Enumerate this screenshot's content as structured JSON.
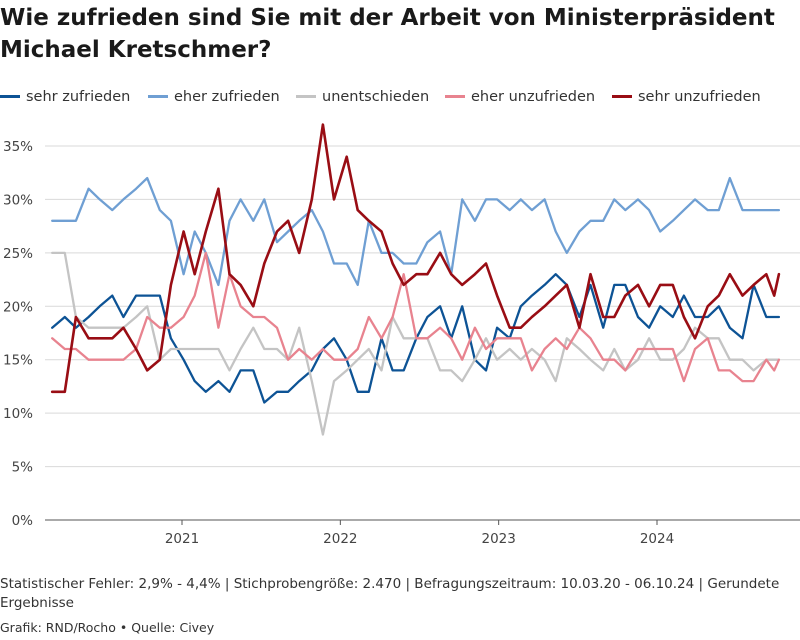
{
  "title": "Wie zufrieden sind Sie mit der Arbeit von Ministerpräsident Michael Kretschmer?",
  "footer": {
    "note": "Statistischer Fehler: 2,9% - 4,4% | Stichprobengröße: 2.470 | Befragungszeitraum: 10.03.20 - 06.10.24 | Gerundete Ergebnisse",
    "credit": "Grafik: RND/Rocho • Quelle: Civey"
  },
  "chart_data": {
    "type": "line",
    "title": "Wie zufrieden sind Sie mit der Arbeit von Ministerpräsident Michael Kretschmer?",
    "ylim": [
      0,
      37
    ],
    "y_ticks": [
      "0%",
      "5%",
      "10%",
      "15%",
      "20%",
      "25%",
      "30%",
      "35%"
    ],
    "y_tick_values": [
      0,
      5,
      10,
      15,
      20,
      25,
      30,
      35
    ],
    "x_range": [
      2020.18,
      2024.77
    ],
    "x_ticks": [
      "2021",
      "2022",
      "2023",
      "2024"
    ],
    "x_tick_values": [
      2021.0,
      2022.0,
      2023.0,
      2024.0
    ],
    "grid": "horizontal",
    "legend_placement": "top",
    "series": [
      {
        "name": "sehr zufrieden",
        "color": "#0d5395",
        "x": [
          2020.18,
          2020.26,
          2020.33,
          2020.41,
          2020.48,
          2020.56,
          2020.63,
          2020.71,
          2020.78,
          2020.86,
          2020.93,
          2021.01,
          2021.08,
          2021.15,
          2021.23,
          2021.3,
          2021.37,
          2021.45,
          2021.52,
          2021.6,
          2021.67,
          2021.74,
          2021.82,
          2021.89,
          2021.96,
          2022.04,
          2022.11,
          2022.18,
          2022.26,
          2022.33,
          2022.4,
          2022.48,
          2022.55,
          2022.63,
          2022.7,
          2022.77,
          2022.85,
          2022.92,
          2022.99,
          2023.07,
          2023.14,
          2023.21,
          2023.29,
          2023.36,
          2023.43,
          2023.51,
          2023.58,
          2023.66,
          2023.73,
          2023.8,
          2023.88,
          2023.95,
          2024.02,
          2024.1,
          2024.17,
          2024.24,
          2024.32,
          2024.39,
          2024.46,
          2024.54,
          2024.61,
          2024.69,
          2024.74,
          2024.77
        ],
        "values": [
          18,
          19,
          18,
          19,
          20,
          21,
          19,
          21,
          21,
          21,
          17,
          15,
          13,
          12,
          13,
          12,
          14,
          14,
          11,
          12,
          12,
          13,
          14,
          16,
          17,
          15,
          12,
          12,
          17,
          14,
          14,
          17,
          19,
          20,
          17,
          20,
          15,
          14,
          18,
          17,
          20,
          21,
          22,
          23,
          22,
          19,
          22,
          18,
          22,
          22,
          19,
          18,
          20,
          19,
          21,
          19,
          19,
          20,
          18,
          17,
          22,
          19,
          19,
          19
        ],
        "values_note": ""
      },
      {
        "name": "eher zufrieden",
        "color": "#6f9fd3",
        "x": [
          2020.18,
          2020.26,
          2020.33,
          2020.41,
          2020.48,
          2020.56,
          2020.63,
          2020.71,
          2020.78,
          2020.86,
          2020.93,
          2021.01,
          2021.08,
          2021.15,
          2021.23,
          2021.3,
          2021.37,
          2021.45,
          2021.52,
          2021.6,
          2021.67,
          2021.74,
          2021.82,
          2021.89,
          2021.96,
          2022.04,
          2022.11,
          2022.18,
          2022.26,
          2022.33,
          2022.4,
          2022.48,
          2022.55,
          2022.63,
          2022.7,
          2022.77,
          2022.85,
          2022.92,
          2022.99,
          2023.07,
          2023.14,
          2023.21,
          2023.29,
          2023.36,
          2023.43,
          2023.51,
          2023.58,
          2023.66,
          2023.73,
          2023.8,
          2023.88,
          2023.95,
          2024.02,
          2024.1,
          2024.17,
          2024.24,
          2024.32,
          2024.39,
          2024.46,
          2024.54,
          2024.61,
          2024.69,
          2024.77
        ],
        "values": [
          28,
          28,
          28,
          31,
          30,
          29,
          30,
          31,
          32,
          29,
          28,
          23,
          27,
          25,
          22,
          28,
          30,
          28,
          30,
          26,
          27,
          28,
          29,
          27,
          24,
          24,
          22,
          28,
          25,
          25,
          24,
          24,
          26,
          27,
          23,
          30,
          28,
          30,
          30,
          29,
          30,
          29,
          30,
          27,
          25,
          27,
          28,
          28,
          30,
          29,
          30,
          29,
          27,
          28,
          29,
          30,
          29,
          29,
          32,
          29,
          29,
          29,
          29
        ],
        "values_note": ""
      },
      {
        "name": "unentschieden",
        "color": "#c4c4c4",
        "x": [
          2020.18,
          2020.26,
          2020.33,
          2020.41,
          2020.48,
          2020.56,
          2020.63,
          2020.71,
          2020.78,
          2020.86,
          2020.93,
          2021.01,
          2021.08,
          2021.15,
          2021.23,
          2021.3,
          2021.37,
          2021.45,
          2021.52,
          2021.6,
          2021.67,
          2021.74,
          2021.82,
          2021.89,
          2021.96,
          2022.04,
          2022.11,
          2022.18,
          2022.26,
          2022.33,
          2022.4,
          2022.48,
          2022.55,
          2022.63,
          2022.7,
          2022.77,
          2022.85,
          2022.92,
          2022.99,
          2023.07,
          2023.14,
          2023.21,
          2023.29,
          2023.36,
          2023.43,
          2023.51,
          2023.58,
          2023.66,
          2023.73,
          2023.8,
          2023.88,
          2023.95,
          2024.02,
          2024.1,
          2024.17,
          2024.24,
          2024.32,
          2024.39,
          2024.46,
          2024.54,
          2024.61,
          2024.69,
          2024.77
        ],
        "values": [
          25,
          25,
          19,
          18,
          18,
          18,
          18,
          19,
          20,
          15,
          16,
          16,
          16,
          16,
          16,
          14,
          16,
          18,
          16,
          16,
          15,
          18,
          13,
          8,
          13,
          14,
          15,
          16,
          14,
          19,
          17,
          17,
          17,
          14,
          14,
          13,
          15,
          17,
          15,
          16,
          15,
          16,
          15,
          13,
          17,
          16,
          15,
          14,
          16,
          14,
          15,
          17,
          15,
          15,
          16,
          18,
          17,
          17,
          15,
          15,
          14,
          15,
          15
        ],
        "values_note": ""
      },
      {
        "name": "eher unzufrieden",
        "color": "#e8838f",
        "x": [
          2020.18,
          2020.26,
          2020.33,
          2020.41,
          2020.48,
          2020.56,
          2020.63,
          2020.71,
          2020.78,
          2020.86,
          2020.93,
          2021.01,
          2021.08,
          2021.15,
          2021.23,
          2021.3,
          2021.37,
          2021.45,
          2021.52,
          2021.6,
          2021.67,
          2021.74,
          2021.82,
          2021.89,
          2021.96,
          2022.04,
          2022.11,
          2022.18,
          2022.26,
          2022.33,
          2022.4,
          2022.48,
          2022.55,
          2022.63,
          2022.7,
          2022.77,
          2022.85,
          2022.92,
          2022.99,
          2023.07,
          2023.14,
          2023.21,
          2023.29,
          2023.36,
          2023.43,
          2023.51,
          2023.58,
          2023.66,
          2023.73,
          2023.8,
          2023.88,
          2023.95,
          2024.02,
          2024.1,
          2024.17,
          2024.24,
          2024.32,
          2024.39,
          2024.46,
          2024.54,
          2024.61,
          2024.69,
          2024.74,
          2024.77
        ],
        "values": [
          17,
          16,
          16,
          15,
          15,
          15,
          15,
          16,
          19,
          18,
          18,
          19,
          21,
          25,
          18,
          23,
          20,
          19,
          19,
          18,
          15,
          16,
          15,
          16,
          15,
          15,
          16,
          19,
          17,
          19,
          23,
          17,
          17,
          18,
          17,
          15,
          18,
          16,
          17,
          17,
          17,
          14,
          16,
          17,
          16,
          18,
          17,
          15,
          15,
          14,
          16,
          16,
          16,
          16,
          13,
          16,
          17,
          14,
          14,
          13,
          13,
          15,
          14,
          15
        ],
        "values_note": ""
      },
      {
        "name": "sehr unzufrieden",
        "color": "#990d14",
        "x": [
          2020.18,
          2020.26,
          2020.33,
          2020.41,
          2020.48,
          2020.56,
          2020.63,
          2020.71,
          2020.78,
          2020.86,
          2020.93,
          2021.01,
          2021.08,
          2021.15,
          2021.23,
          2021.3,
          2021.37,
          2021.45,
          2021.52,
          2021.6,
          2021.67,
          2021.74,
          2021.82,
          2021.89,
          2021.96,
          2022.04,
          2022.11,
          2022.18,
          2022.26,
          2022.33,
          2022.4,
          2022.48,
          2022.55,
          2022.63,
          2022.7,
          2022.77,
          2022.85,
          2022.92,
          2022.99,
          2023.07,
          2023.14,
          2023.21,
          2023.29,
          2023.36,
          2023.43,
          2023.51,
          2023.58,
          2023.66,
          2023.73,
          2023.8,
          2023.88,
          2023.95,
          2024.02,
          2024.1,
          2024.17,
          2024.24,
          2024.32,
          2024.39,
          2024.46,
          2024.54,
          2024.61,
          2024.69,
          2024.74,
          2024.77
        ],
        "values": [
          12,
          12,
          19,
          17,
          17,
          17,
          18,
          16,
          14,
          15,
          22,
          27,
          23,
          27,
          31,
          23,
          22,
          20,
          24,
          27,
          28,
          25,
          30,
          37,
          30,
          34,
          29,
          28,
          27,
          24,
          22,
          23,
          23,
          25,
          23,
          22,
          23,
          24,
          21,
          18,
          18,
          19,
          20,
          21,
          22,
          18,
          23,
          19,
          19,
          21,
          22,
          20,
          22,
          22,
          19,
          17,
          20,
          21,
          23,
          21,
          22,
          23,
          21,
          23
        ],
        "values_note": ""
      }
    ]
  }
}
